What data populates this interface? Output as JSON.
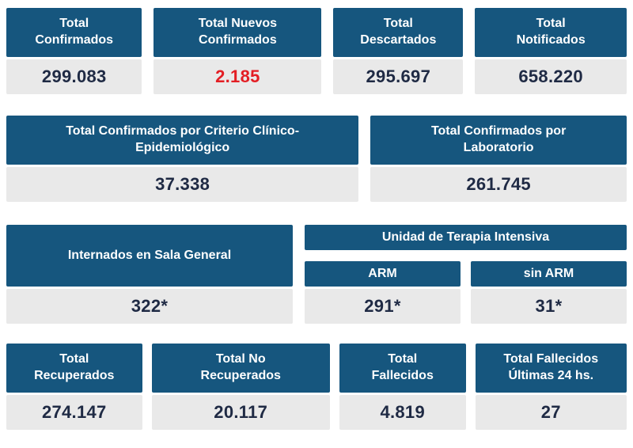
{
  "colors": {
    "header_bg": "#16567E",
    "value_bg": "#E9E9E9",
    "value_text": "#1F2A44",
    "highlight": "#E31E24",
    "header_text": "#FFFFFF"
  },
  "row1": [
    {
      "label": "Total Confirmados",
      "value": "299.083",
      "highlight": false
    },
    {
      "label": "Total Nuevos Confirmados",
      "value": "2.185",
      "highlight": true
    },
    {
      "label": "Total Descartados",
      "value": "295.697",
      "highlight": false
    },
    {
      "label": "Total Notificados",
      "value": "658.220",
      "highlight": false
    }
  ],
  "row2": [
    {
      "label": "Total Confirmados por Criterio Clínico-Epidemiológico",
      "value": "37.338"
    },
    {
      "label": "Total Confirmados por Laboratorio",
      "value": "261.745"
    }
  ],
  "row3": {
    "internados": {
      "label": "Internados en Sala General",
      "value": "322*"
    },
    "uti": {
      "label": "Unidad de Terapia Intensiva",
      "columns": [
        {
          "label": "ARM",
          "value": "291*"
        },
        {
          "label": "sin ARM",
          "value": "31*"
        }
      ]
    }
  },
  "row4": [
    {
      "label": "Total Recuperados",
      "value": "274.147"
    },
    {
      "label": "Total No Recuperados",
      "value": "20.117"
    },
    {
      "label": "Total Fallecidos",
      "value": "4.819"
    },
    {
      "label": "Total Fallecidos Últimas 24 hs.",
      "value": "27"
    }
  ]
}
